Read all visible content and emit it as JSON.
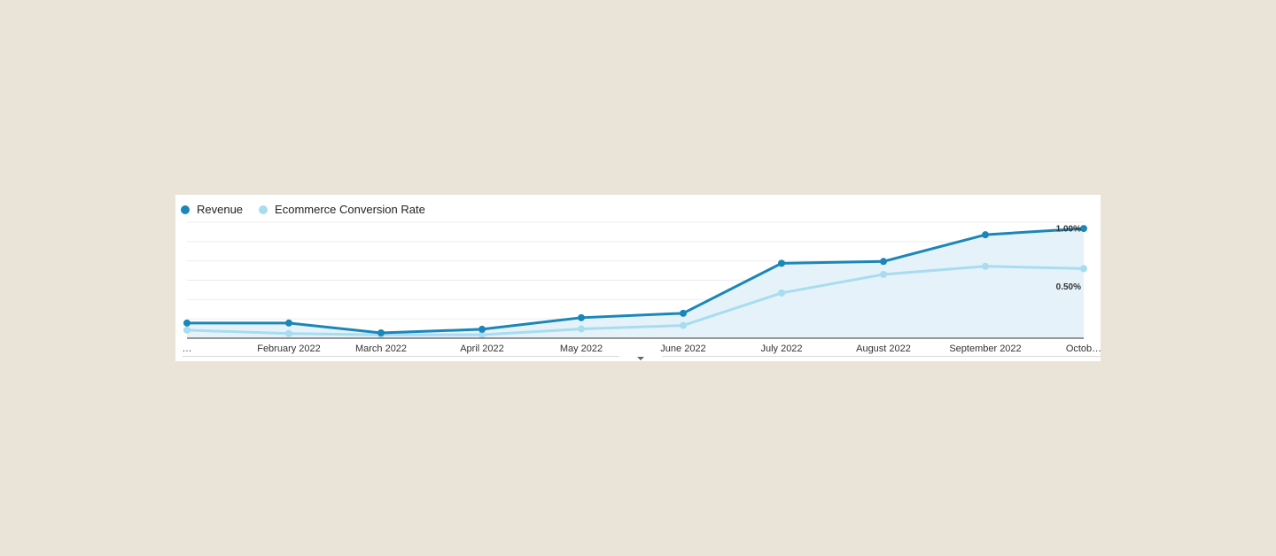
{
  "colors": {
    "revenue": "#1a87b8",
    "conversion": "#a8dcf0",
    "area": "#e6f2fa",
    "grid": "#ececec",
    "axis": "#333333"
  },
  "chart_data": {
    "type": "line",
    "legend_position": "top-left",
    "grid": true,
    "categories": [
      "…",
      "February 2022",
      "March 2022",
      "April 2022",
      "May 2022",
      "June 2022",
      "July 2022",
      "August 2022",
      "September 2022",
      "Octob…"
    ],
    "series": [
      {
        "name": "Revenue",
        "axis": "left",
        "values": [
          13.1,
          13.1,
          4.6,
          7.7,
          17.7,
          21.5,
          64.6,
          66.2,
          89.2,
          94.6
        ]
      },
      {
        "name": "Ecommerce Conversion Rate",
        "axis": "right",
        "values": [
          0.07,
          0.04,
          0.03,
          0.03,
          0.08,
          0.11,
          0.39,
          0.55,
          0.62,
          0.6
        ]
      }
    ],
    "right_axis": {
      "ticks": [
        "1.00%",
        "0.50%"
      ],
      "tick_values": [
        0.95,
        0.45
      ],
      "range": [
        0,
        1.0
      ]
    },
    "left_axis": {
      "range": [
        0,
        100
      ]
    }
  }
}
